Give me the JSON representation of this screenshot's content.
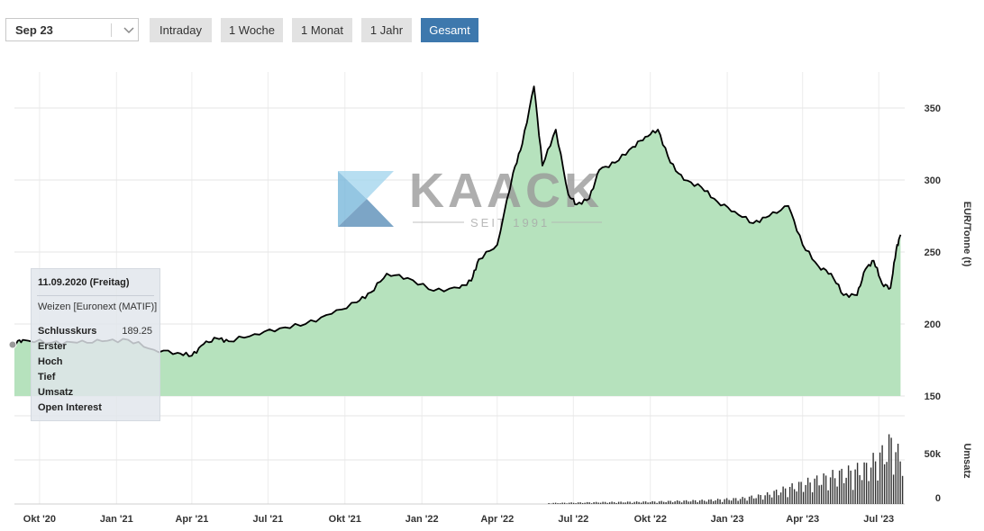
{
  "toolbar": {
    "range_select": "Sep 23",
    "buttons": [
      {
        "label": "Intraday",
        "active": false
      },
      {
        "label": "1 Woche",
        "active": false
      },
      {
        "label": "1 Monat",
        "active": false
      },
      {
        "label": "1 Jahr",
        "active": false
      },
      {
        "label": "Gesamt",
        "active": true
      }
    ]
  },
  "watermark": {
    "brand": "KAACK",
    "tagline": "SEIT 1991"
  },
  "colors": {
    "area_fill": "#b6e2bd",
    "line": "#000000",
    "active_button": "#3d78ad",
    "button": "#e2e2e2",
    "volume_bar": "#333333"
  },
  "tooltip": {
    "date": "11.09.2020 (Freitag)",
    "instrument": "Weizen [Euronext (MATIF)]",
    "rows": [
      "Schlusskurs",
      "Erster",
      "Hoch",
      "Tief",
      "Umsatz",
      "Open Interest"
    ],
    "close_value": "189.25"
  },
  "chart_data": [
    {
      "type": "area",
      "yaxis_label": "EUR/Tonne (t)",
      "x_ticks": [
        "Okt '20",
        "Jan '21",
        "Apr '21",
        "Jul '21",
        "Okt '21",
        "Jan '22",
        "Apr '22",
        "Jul '22",
        "Okt '22",
        "Jan '23",
        "Apr '23",
        "Jul '23"
      ],
      "y_ticks": [
        150,
        200,
        250,
        300,
        350
      ],
      "ylim": [
        150,
        375
      ],
      "grid": true,
      "x": [
        "2020-09-01",
        "2020-09-11",
        "2020-10-15",
        "2020-11-15",
        "2020-12-15",
        "2021-01-15",
        "2021-02-15",
        "2021-03-15",
        "2021-04-01",
        "2021-04-15",
        "2021-05-01",
        "2021-05-15",
        "2021-06-15",
        "2021-07-15",
        "2021-08-15",
        "2021-09-15",
        "2021-10-15",
        "2021-11-01",
        "2021-11-20",
        "2021-12-15",
        "2022-01-15",
        "2022-02-15",
        "2022-03-01",
        "2022-03-10",
        "2022-04-01",
        "2022-04-20",
        "2022-05-01",
        "2022-05-15",
        "2022-05-25",
        "2022-06-10",
        "2022-06-25",
        "2022-07-05",
        "2022-07-20",
        "2022-08-01",
        "2022-08-20",
        "2022-09-10",
        "2022-09-25",
        "2022-10-10",
        "2022-10-25",
        "2022-11-10",
        "2022-12-01",
        "2022-12-20",
        "2023-01-10",
        "2023-02-01",
        "2023-02-20",
        "2023-03-15",
        "2023-04-01",
        "2023-04-20",
        "2023-05-05",
        "2023-05-20",
        "2023-06-05",
        "2023-06-15",
        "2023-06-25",
        "2023-07-05",
        "2023-07-15",
        "2023-07-22",
        "2023-07-27"
      ],
      "series": [
        {
          "values": [
            187,
            189,
            187,
            187,
            188,
            189,
            182,
            180,
            178,
            186,
            190,
            188,
            193,
            197,
            200,
            207,
            215,
            222,
            235,
            232,
            223,
            225,
            230,
            245,
            255,
            305,
            325,
            365,
            310,
            335,
            290,
            283,
            287,
            307,
            312,
            323,
            330,
            335,
            312,
            300,
            295,
            285,
            278,
            270,
            275,
            282,
            255,
            240,
            235,
            220,
            220,
            238,
            244,
            228,
            225,
            252,
            262
          ]
        }
      ]
    },
    {
      "type": "bar",
      "yaxis_label": "Umsatz",
      "y_ticks": [
        "0",
        "50k"
      ],
      "ylim": [
        0,
        80000
      ],
      "series": [
        {
          "x": [
            "2022-06-01",
            "2022-08-01",
            "2022-10-01",
            "2022-12-01",
            "2023-01-15",
            "2023-02-15",
            "2023-03-15",
            "2023-04-15",
            "2023-05-15",
            "2023-06-15",
            "2023-07-05",
            "2023-07-15",
            "2023-07-25"
          ],
          "values": [
            1000,
            2000,
            2500,
            4000,
            6000,
            10000,
            18000,
            26000,
            33000,
            40000,
            55000,
            68000,
            52000
          ]
        }
      ]
    }
  ]
}
